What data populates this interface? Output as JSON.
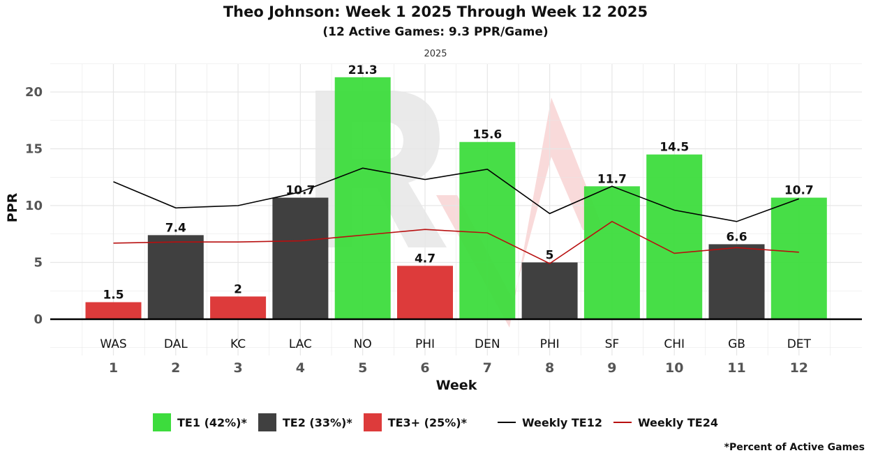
{
  "title": "Theo Johnson: Week 1 2025 Through Week 12 2025",
  "subtitle": "(12 Active Games: 9.3 PPR/Game)",
  "facet_label": "2025",
  "footnote": "*Percent of Active Games",
  "legend": [
    {
      "key": "TE1",
      "label": "TE1 (42%)*",
      "kind": "swatch"
    },
    {
      "key": "TE2",
      "label": "TE2 (33%)*",
      "kind": "swatch"
    },
    {
      "key": "TE3",
      "label": "TE3+ (25%)*",
      "kind": "swatch"
    },
    {
      "key": "TE12",
      "label": "Weekly TE12",
      "kind": "line"
    },
    {
      "key": "TE24",
      "label": "Weekly TE24",
      "kind": "line"
    }
  ],
  "colors": {
    "TE1": "#3ddc3d",
    "TE2": "#404040",
    "TE3": "#dd3b3b",
    "TE12": "#000000",
    "TE24": "#b80f0f",
    "grid": "#e6e6e6",
    "watermark": "#e3e3e3",
    "watermark_accent": "#f7caca"
  },
  "chart_data": {
    "type": "bar",
    "title": "Theo Johnson: Week 1 2025 Through Week 12 2025",
    "xlabel": "Week",
    "ylabel": "PPR",
    "ylim": [
      -3.2,
      22.7
    ],
    "yticks": [
      0,
      5,
      10,
      15,
      20
    ],
    "categories": [
      "1",
      "2",
      "3",
      "4",
      "5",
      "6",
      "7",
      "8",
      "9",
      "10",
      "11",
      "12"
    ],
    "opponents": [
      "WAS",
      "DAL",
      "KC",
      "LAC",
      "NO",
      "PHI",
      "DEN",
      "PHI",
      "SF",
      "CHI",
      "GB",
      "DET"
    ],
    "values": [
      1.5,
      7.4,
      2,
      10.7,
      21.3,
      4.7,
      15.6,
      5,
      11.7,
      14.5,
      6.6,
      10.7
    ],
    "value_labels": [
      "1.5",
      "7.4",
      "2",
      "10.7",
      "21.3",
      "4.7",
      "15.6",
      "5",
      "11.7",
      "14.5",
      "6.6",
      "10.7"
    ],
    "tiers": [
      "TE3",
      "TE2",
      "TE3",
      "TE2",
      "TE1",
      "TE3",
      "TE1",
      "TE2",
      "TE1",
      "TE1",
      "TE2",
      "TE1"
    ],
    "series": [
      {
        "name": "Weekly TE12",
        "key": "TE12",
        "values": [
          12.1,
          9.8,
          10.0,
          11.2,
          13.3,
          12.3,
          13.2,
          9.3,
          11.7,
          9.6,
          8.6,
          10.6
        ]
      },
      {
        "name": "Weekly TE24",
        "key": "TE24",
        "values": [
          6.7,
          6.8,
          6.8,
          6.9,
          7.4,
          7.9,
          7.6,
          4.9,
          8.6,
          5.8,
          6.3,
          5.9
        ]
      }
    ],
    "grid": true,
    "legend_position": "bottom"
  }
}
